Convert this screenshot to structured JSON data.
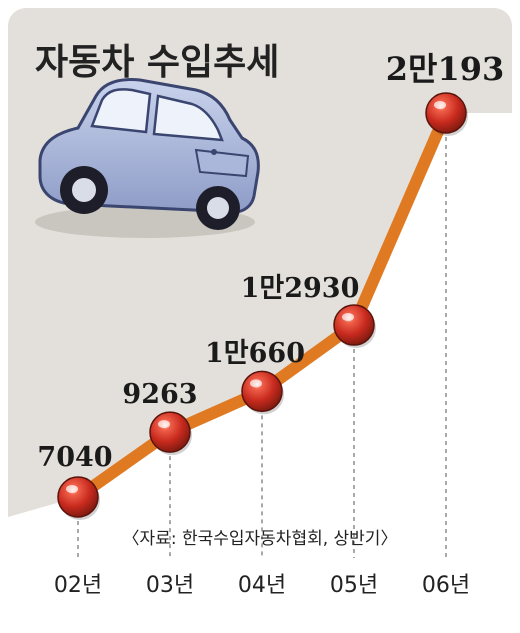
{
  "chart_data": {
    "type": "line",
    "title": "자동차 수입추세",
    "source": "〈자료: 한국수입자동차협회, 상반기〉",
    "categories": [
      "02년",
      "03년",
      "04년",
      "05년",
      "06년"
    ],
    "values": [
      7040,
      9263,
      10660,
      12930,
      20193
    ],
    "value_labels": [
      "7040",
      "9263",
      "1만660",
      "1만2930",
      "2만193"
    ],
    "grid": false,
    "colors": {
      "background": "#e3e0db",
      "line": "#e07a22",
      "marker": "#c82a1e",
      "marker_shadow": "#8f2415",
      "dash": "#7a7a7a"
    }
  }
}
